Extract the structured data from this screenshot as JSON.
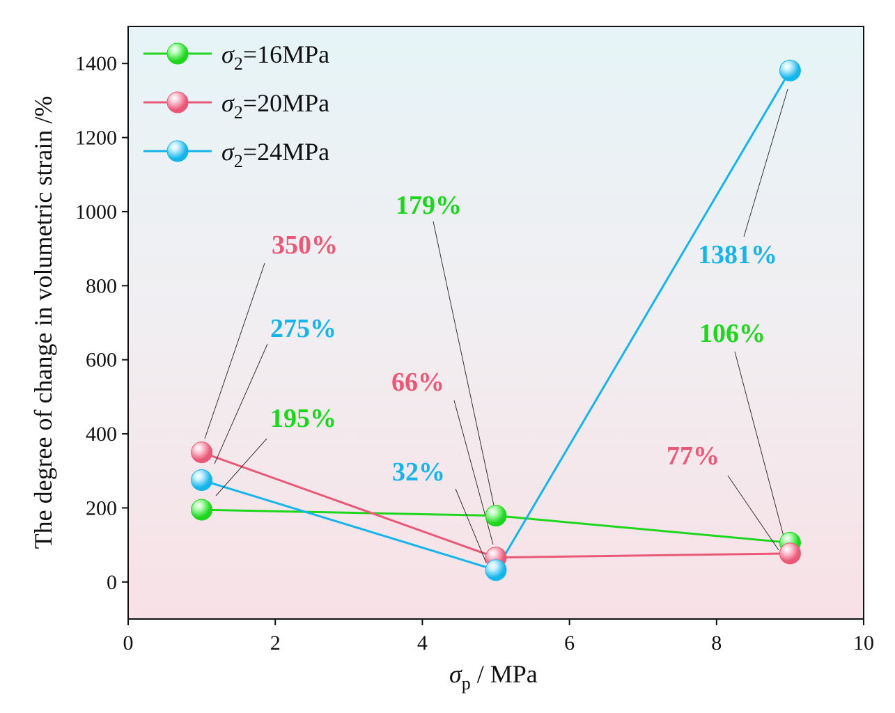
{
  "chart_data": {
    "type": "line",
    "title": "",
    "xlabel": {
      "symbol": "σ",
      "sub": "p",
      "rest": " / MPa"
    },
    "ylabel": "The degree of change in volumetric strain  /%",
    "xlim": [
      0,
      10
    ],
    "ylim": [
      -100,
      1500
    ],
    "xticks": [
      0,
      2,
      4,
      6,
      8,
      10
    ],
    "yticks": [
      0,
      200,
      400,
      600,
      800,
      1000,
      1200,
      1400
    ],
    "grid": false,
    "legend_position": "top-left",
    "series": [
      {
        "name": "σ2=16MPa",
        "legend": {
          "symbol": "σ",
          "sub": "2",
          "rest": "=16MPa"
        },
        "color": "#1fd61f",
        "highlight": "#b8ffb8",
        "x": [
          1,
          5,
          9
        ],
        "values": [
          195,
          179,
          106
        ],
        "labels": [
          "195%",
          "179%",
          "106%"
        ]
      },
      {
        "name": "σ2=20MPa",
        "legend": {
          "symbol": "σ",
          "sub": "2",
          "rest": "=20MPa"
        },
        "color": "#ea5878",
        "highlight": "#ffd0dc",
        "x": [
          1,
          5,
          9
        ],
        "values": [
          350,
          66,
          77
        ],
        "labels": [
          "350%",
          "66%",
          "77%"
        ]
      },
      {
        "name": "σ2=24MPa",
        "legend": {
          "symbol": "σ",
          "sub": "2",
          "rest": "=24MPa"
        },
        "color": "#15b5ea",
        "highlight": "#c8f0ff",
        "x": [
          1,
          5,
          9
        ],
        "values": [
          275,
          32,
          1381
        ],
        "labels": [
          "275%",
          "32%",
          "1381%"
        ]
      }
    ]
  }
}
